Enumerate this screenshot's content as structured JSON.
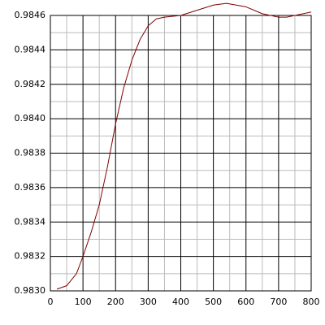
{
  "chart_data": {
    "type": "line",
    "x": [
      20,
      50,
      80,
      100,
      125,
      150,
      175,
      200,
      225,
      250,
      275,
      300,
      325,
      350,
      400,
      450,
      500,
      540,
      600,
      650,
      700,
      725,
      750,
      800
    ],
    "series": [
      {
        "color": "#800000",
        "values": [
          0.98301,
          0.98303,
          0.9831,
          0.9832,
          0.98334,
          0.9835,
          0.98372,
          0.98397,
          0.98418,
          0.98434,
          0.98446,
          0.98454,
          0.98458,
          0.98459,
          0.9846,
          0.98463,
          0.98466,
          0.98467,
          0.98465,
          0.98461,
          0.98459,
          0.98459,
          0.9846,
          0.98462
        ]
      }
    ],
    "xlim": [
      0,
      800
    ],
    "xticks": [
      0,
      100,
      200,
      300,
      400,
      500,
      600,
      700,
      800
    ],
    "xminorticks": [
      50,
      150,
      250,
      350,
      450,
      550,
      650,
      750
    ],
    "ylim": [
      0.983,
      0.9846
    ],
    "yticks": [
      {
        "value": 0.983,
        "label": "0.9830"
      },
      0.9832,
      0.9834,
      0.9836,
      0.9838,
      {
        "value": 0.984,
        "label": "0.9840"
      },
      0.9842,
      0.9844,
      0.9846
    ],
    "yminorticks": [
      0.9831,
      0.9833,
      0.9835,
      0.9837,
      0.9839,
      0.9841,
      0.9843,
      0.9845
    ],
    "grid": true
  }
}
